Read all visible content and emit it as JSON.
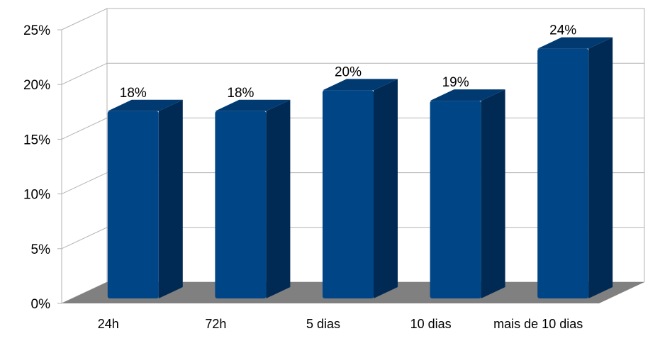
{
  "chart_data": {
    "type": "bar",
    "categories": [
      "24h",
      "72h",
      "5 dias",
      "10 dias",
      "mais de 10 dias"
    ],
    "values": [
      18,
      18,
      20,
      19,
      24
    ],
    "data_labels": [
      "18%",
      "18%",
      "20%",
      "19%",
      "24%"
    ],
    "ylim": [
      0,
      25
    ],
    "yticks": [
      "0%",
      "5%",
      "10%",
      "15%",
      "20%",
      "25%"
    ],
    "grid": true,
    "style": "3d-column",
    "colors": {
      "bar_front": "#004586",
      "bar_side": "#002a54",
      "bar_top": "#003a70",
      "floor": "#808080",
      "grid": "#b3b3b3"
    }
  }
}
